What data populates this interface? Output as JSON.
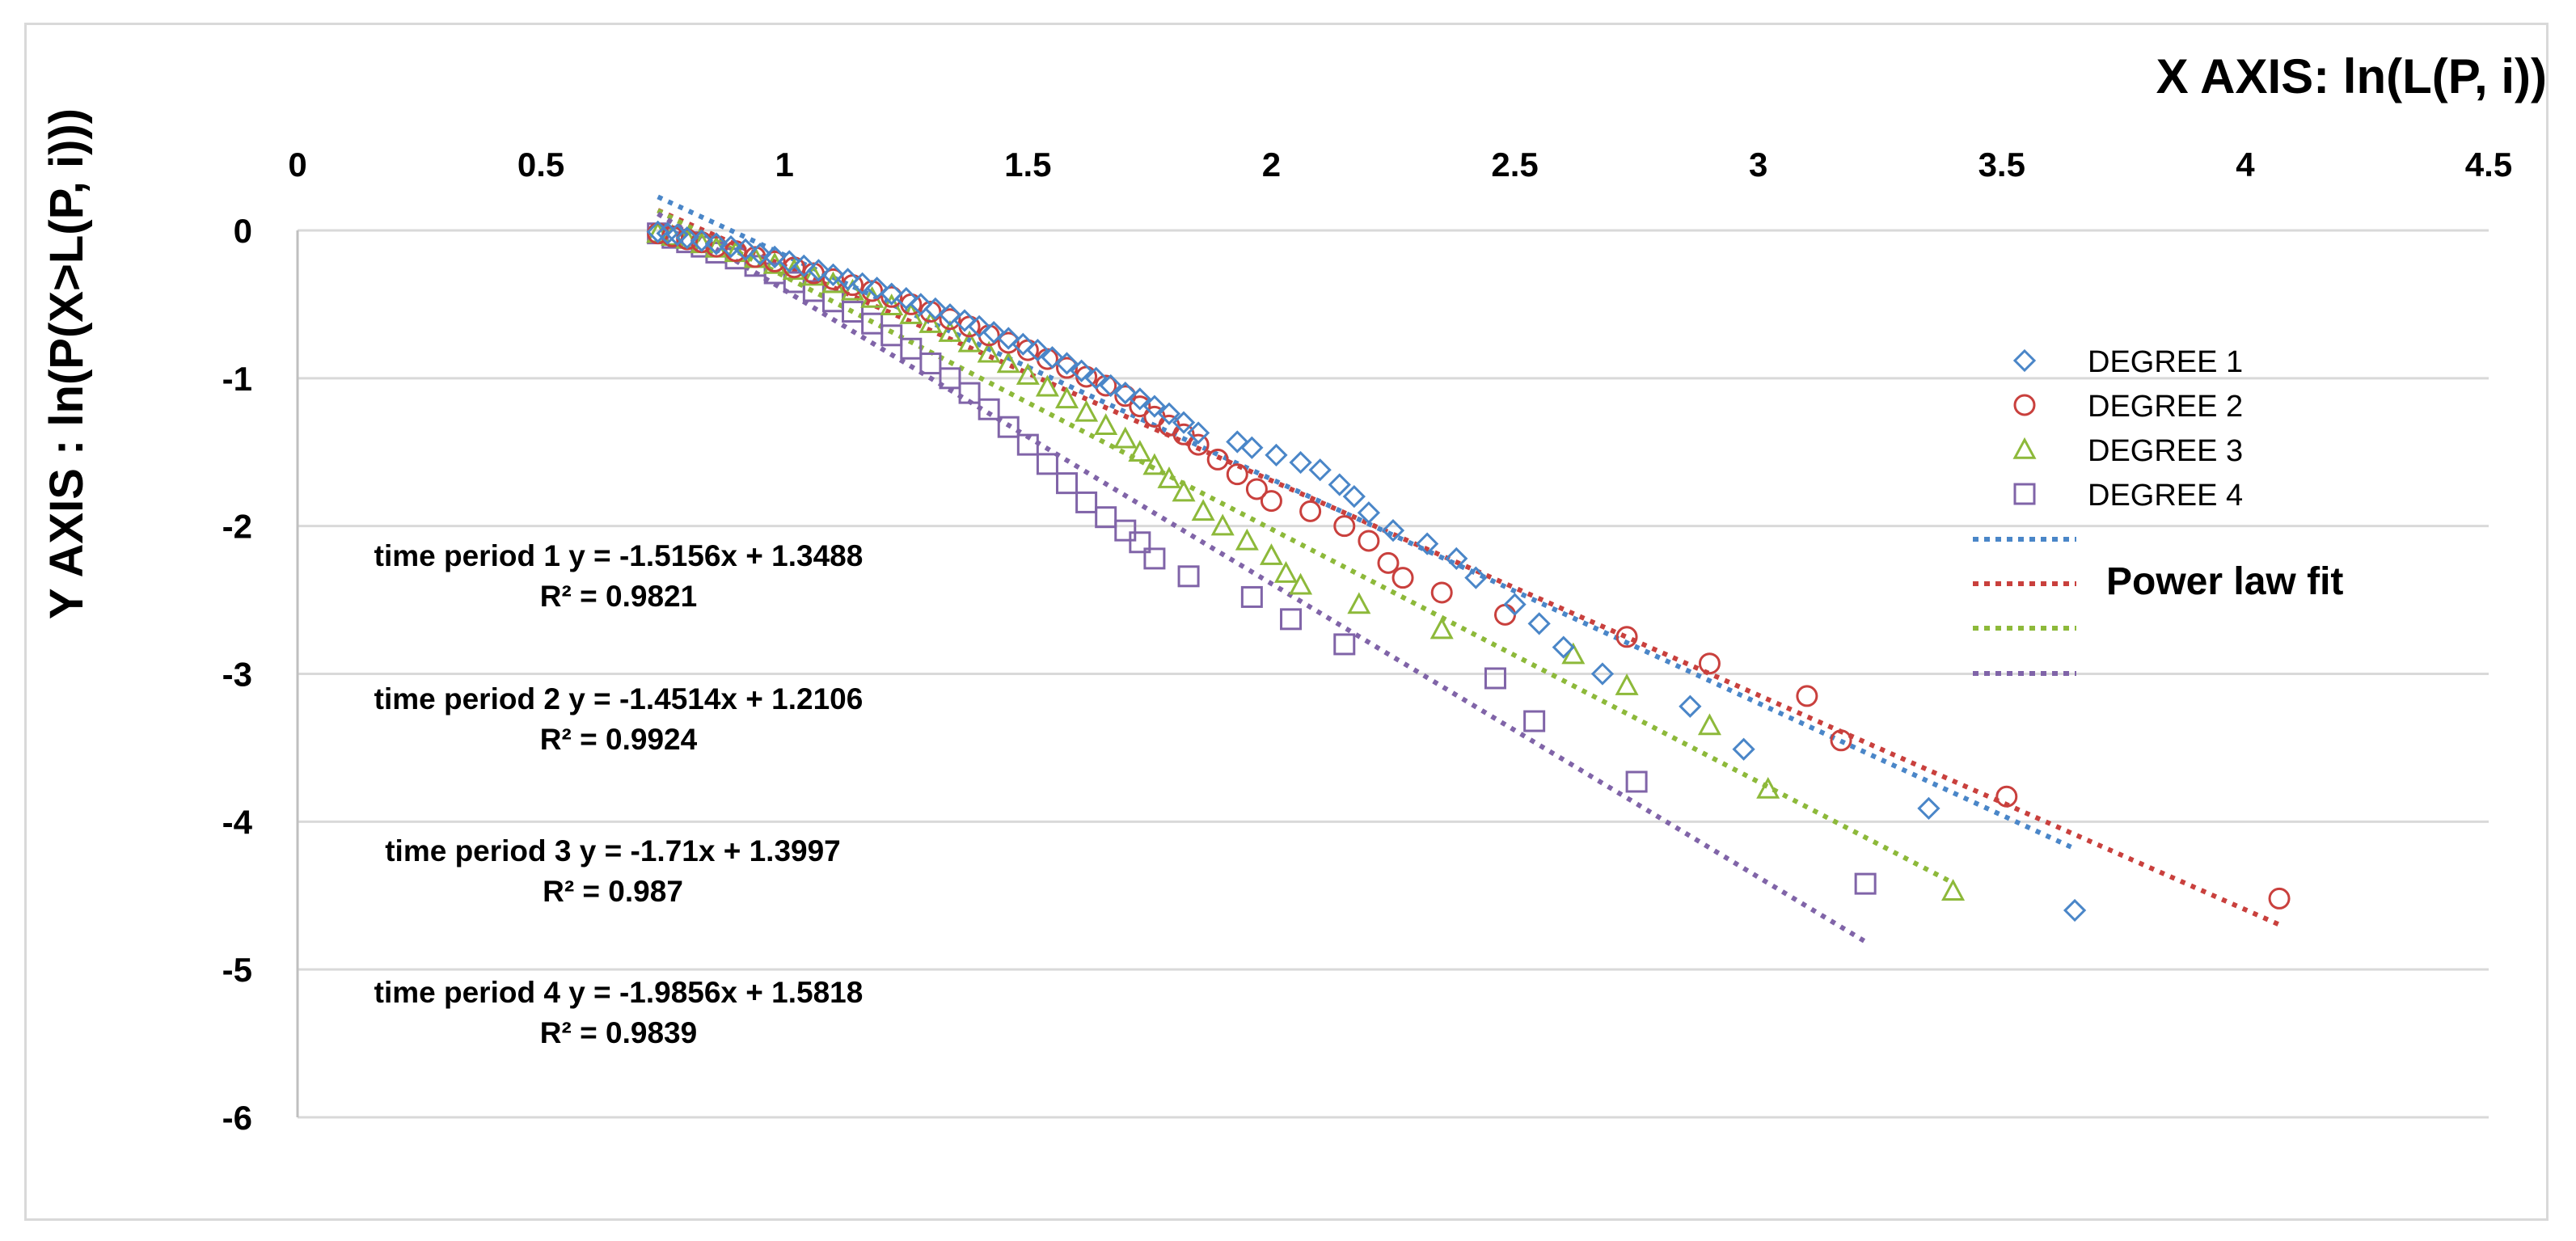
{
  "chart_data": {
    "type": "scatter",
    "xlabel": "X AXIS: ln(L(P, i))",
    "ylabel": "Y AXIS : ln(P(X>L(P, i)))",
    "xlim": [
      0,
      4.5
    ],
    "ylim": [
      -6,
      0
    ],
    "xticks": [
      "0",
      "0.5",
      "1",
      "1.5",
      "2",
      "2.5",
      "3",
      "3.5",
      "4",
      "4.5"
    ],
    "yticks": [
      "0",
      "-1",
      "-2",
      "-3",
      "-4",
      "-5",
      "-6"
    ],
    "grid": "horizontal",
    "legend_position": "right",
    "legend": {
      "entries": [
        "DEGREE 1",
        "DEGREE 2",
        "DEGREE 3",
        "DEGREE 4"
      ],
      "fit_label": "Power law fit"
    },
    "colors": [
      "#4a86c8",
      "#c9403d",
      "#8db93a",
      "#8064a8"
    ],
    "markers": [
      "diamond",
      "circle",
      "triangle",
      "square"
    ],
    "series": [
      {
        "name": "DEGREE 1",
        "points": [
          [
            0.74,
            -0.01
          ],
          [
            0.76,
            -0.02
          ],
          [
            0.78,
            -0.03
          ],
          [
            0.8,
            -0.05
          ],
          [
            0.83,
            -0.07
          ],
          [
            0.86,
            -0.09
          ],
          [
            0.89,
            -0.11
          ],
          [
            0.92,
            -0.13
          ],
          [
            0.95,
            -0.16
          ],
          [
            0.98,
            -0.18
          ],
          [
            1.01,
            -0.21
          ],
          [
            1.04,
            -0.24
          ],
          [
            1.07,
            -0.27
          ],
          [
            1.1,
            -0.3
          ],
          [
            1.13,
            -0.33
          ],
          [
            1.16,
            -0.36
          ],
          [
            1.19,
            -0.39
          ],
          [
            1.22,
            -0.43
          ],
          [
            1.25,
            -0.46
          ],
          [
            1.28,
            -0.5
          ],
          [
            1.31,
            -0.53
          ],
          [
            1.34,
            -0.57
          ],
          [
            1.37,
            -0.61
          ],
          [
            1.4,
            -0.65
          ],
          [
            1.43,
            -0.69
          ],
          [
            1.46,
            -0.73
          ],
          [
            1.49,
            -0.77
          ],
          [
            1.52,
            -0.81
          ],
          [
            1.55,
            -0.86
          ],
          [
            1.58,
            -0.9
          ],
          [
            1.61,
            -0.95
          ],
          [
            1.64,
            -1.0
          ],
          [
            1.67,
            -1.05
          ],
          [
            1.7,
            -1.1
          ],
          [
            1.73,
            -1.14
          ],
          [
            1.76,
            -1.19
          ],
          [
            1.79,
            -1.24
          ],
          [
            1.82,
            -1.3
          ],
          [
            1.85,
            -1.37
          ],
          [
            1.93,
            -1.43
          ],
          [
            1.96,
            -1.47
          ],
          [
            2.01,
            -1.52
          ],
          [
            2.06,
            -1.57
          ],
          [
            2.1,
            -1.62
          ],
          [
            2.14,
            -1.72
          ],
          [
            2.17,
            -1.8
          ],
          [
            2.2,
            -1.91
          ],
          [
            2.25,
            -2.03
          ],
          [
            2.32,
            -2.12
          ],
          [
            2.38,
            -2.22
          ],
          [
            2.42,
            -2.35
          ],
          [
            2.5,
            -2.53
          ],
          [
            2.55,
            -2.66
          ],
          [
            2.6,
            -2.82
          ],
          [
            2.68,
            -3.0
          ],
          [
            2.86,
            -3.22
          ],
          [
            2.97,
            -3.51
          ],
          [
            3.35,
            -3.91
          ],
          [
            3.65,
            -4.6
          ]
        ],
        "fit": {
          "equation": "time period 1 y = -1.5156x + 1.3488",
          "r2": "R² = 0.9821",
          "slope": -1.5156,
          "intercept": 1.3488,
          "x_range": [
            0.74,
            3.65
          ]
        }
      },
      {
        "name": "DEGREE 2",
        "points": [
          [
            0.74,
            -0.02
          ],
          [
            0.77,
            -0.04
          ],
          [
            0.8,
            -0.06
          ],
          [
            0.83,
            -0.08
          ],
          [
            0.86,
            -0.11
          ],
          [
            0.9,
            -0.14
          ],
          [
            0.94,
            -0.18
          ],
          [
            0.98,
            -0.21
          ],
          [
            1.02,
            -0.25
          ],
          [
            1.06,
            -0.29
          ],
          [
            1.1,
            -0.33
          ],
          [
            1.14,
            -0.37
          ],
          [
            1.18,
            -0.41
          ],
          [
            1.22,
            -0.45
          ],
          [
            1.26,
            -0.5
          ],
          [
            1.3,
            -0.55
          ],
          [
            1.34,
            -0.6
          ],
          [
            1.38,
            -0.65
          ],
          [
            1.42,
            -0.71
          ],
          [
            1.46,
            -0.76
          ],
          [
            1.5,
            -0.81
          ],
          [
            1.54,
            -0.87
          ],
          [
            1.58,
            -0.93
          ],
          [
            1.62,
            -0.99
          ],
          [
            1.66,
            -1.05
          ],
          [
            1.7,
            -1.12
          ],
          [
            1.73,
            -1.19
          ],
          [
            1.76,
            -1.26
          ],
          [
            1.79,
            -1.32
          ],
          [
            1.82,
            -1.38
          ],
          [
            1.85,
            -1.45
          ],
          [
            1.89,
            -1.55
          ],
          [
            1.93,
            -1.65
          ],
          [
            1.97,
            -1.75
          ],
          [
            2.0,
            -1.83
          ],
          [
            2.08,
            -1.9
          ],
          [
            2.15,
            -2.0
          ],
          [
            2.2,
            -2.1
          ],
          [
            2.24,
            -2.25
          ],
          [
            2.27,
            -2.35
          ],
          [
            2.35,
            -2.45
          ],
          [
            2.48,
            -2.6
          ],
          [
            2.73,
            -2.75
          ],
          [
            2.9,
            -2.93
          ],
          [
            3.1,
            -3.15
          ],
          [
            3.17,
            -3.45
          ],
          [
            3.51,
            -3.83
          ],
          [
            4.07,
            -4.52
          ]
        ],
        "fit": {
          "equation": "time period 2 y = -1.4514x + 1.2106",
          "r2": "R² = 0.9924",
          "slope": -1.4514,
          "intercept": 1.2106,
          "x_range": [
            0.74,
            4.07
          ]
        }
      },
      {
        "name": "DEGREE 3",
        "points": [
          [
            0.74,
            -0.02
          ],
          [
            0.77,
            -0.04
          ],
          [
            0.8,
            -0.06
          ],
          [
            0.83,
            -0.09
          ],
          [
            0.86,
            -0.12
          ],
          [
            0.9,
            -0.15
          ],
          [
            0.94,
            -0.19
          ],
          [
            0.98,
            -0.23
          ],
          [
            1.02,
            -0.27
          ],
          [
            1.06,
            -0.31
          ],
          [
            1.1,
            -0.36
          ],
          [
            1.14,
            -0.41
          ],
          [
            1.18,
            -0.46
          ],
          [
            1.22,
            -0.51
          ],
          [
            1.26,
            -0.57
          ],
          [
            1.3,
            -0.63
          ],
          [
            1.34,
            -0.69
          ],
          [
            1.38,
            -0.76
          ],
          [
            1.42,
            -0.83
          ],
          [
            1.46,
            -0.9
          ],
          [
            1.5,
            -0.98
          ],
          [
            1.54,
            -1.06
          ],
          [
            1.58,
            -1.14
          ],
          [
            1.62,
            -1.23
          ],
          [
            1.66,
            -1.32
          ],
          [
            1.7,
            -1.41
          ],
          [
            1.73,
            -1.5
          ],
          [
            1.76,
            -1.59
          ],
          [
            1.79,
            -1.68
          ],
          [
            1.82,
            -1.77
          ],
          [
            1.86,
            -1.9
          ],
          [
            1.9,
            -2.0
          ],
          [
            1.95,
            -2.1
          ],
          [
            2.0,
            -2.2
          ],
          [
            2.03,
            -2.32
          ],
          [
            2.06,
            -2.4
          ],
          [
            2.18,
            -2.53
          ],
          [
            2.35,
            -2.7
          ],
          [
            2.62,
            -2.87
          ],
          [
            2.73,
            -3.08
          ],
          [
            2.9,
            -3.35
          ],
          [
            3.02,
            -3.78
          ],
          [
            3.4,
            -4.47
          ]
        ],
        "fit": {
          "equation": "time period 3 y = -1.71x + 1.3997",
          "r2": "R² = 0.987",
          "slope": -1.71,
          "intercept": 1.3997,
          "x_range": [
            0.74,
            3.4
          ]
        }
      },
      {
        "name": "DEGREE 4",
        "points": [
          [
            0.74,
            -0.02
          ],
          [
            0.77,
            -0.05
          ],
          [
            0.8,
            -0.08
          ],
          [
            0.83,
            -0.11
          ],
          [
            0.86,
            -0.15
          ],
          [
            0.9,
            -0.19
          ],
          [
            0.94,
            -0.24
          ],
          [
            0.98,
            -0.29
          ],
          [
            1.02,
            -0.35
          ],
          [
            1.06,
            -0.41
          ],
          [
            1.1,
            -0.48
          ],
          [
            1.14,
            -0.55
          ],
          [
            1.18,
            -0.63
          ],
          [
            1.22,
            -0.71
          ],
          [
            1.26,
            -0.8
          ],
          [
            1.3,
            -0.9
          ],
          [
            1.34,
            -1.0
          ],
          [
            1.38,
            -1.1
          ],
          [
            1.42,
            -1.21
          ],
          [
            1.46,
            -1.33
          ],
          [
            1.5,
            -1.45
          ],
          [
            1.54,
            -1.58
          ],
          [
            1.58,
            -1.71
          ],
          [
            1.62,
            -1.84
          ],
          [
            1.66,
            -1.94
          ],
          [
            1.7,
            -2.03
          ],
          [
            1.73,
            -2.11
          ],
          [
            1.76,
            -2.22
          ],
          [
            1.83,
            -2.34
          ],
          [
            1.96,
            -2.48
          ],
          [
            2.04,
            -2.63
          ],
          [
            2.15,
            -2.8
          ],
          [
            2.46,
            -3.03
          ],
          [
            2.54,
            -3.32
          ],
          [
            2.75,
            -3.73
          ],
          [
            3.22,
            -4.42
          ]
        ],
        "fit": {
          "equation": "time period 4 y = -1.9856x + 1.5818",
          "r2": "R² = 0.9839",
          "slope": -1.9856,
          "intercept": 1.5818,
          "x_range": [
            0.74,
            3.22
          ]
        }
      }
    ]
  }
}
